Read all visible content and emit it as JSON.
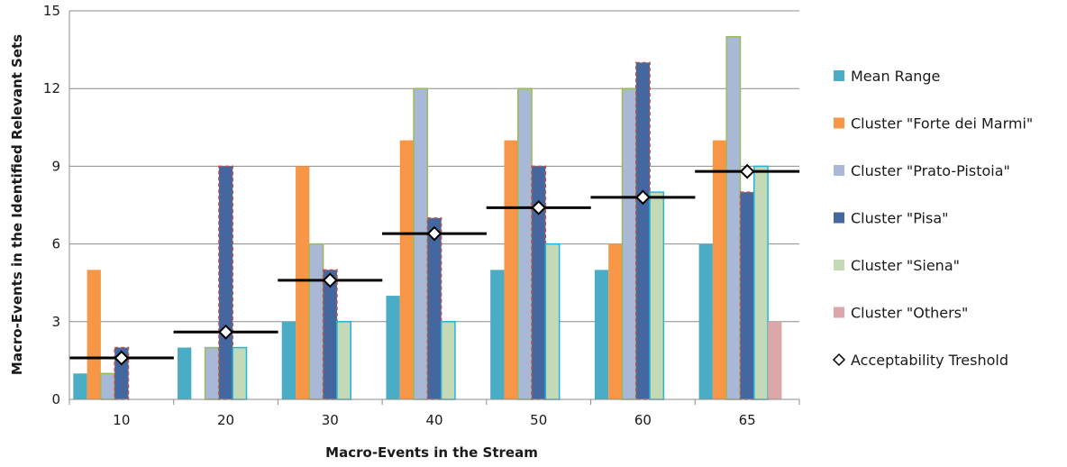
{
  "chart_data": {
    "type": "bar",
    "xlabel": "Macro-Events in the Stream",
    "ylabel": "Macro-Events in the Identified Relevant Sets",
    "ylim": [
      0,
      15
    ],
    "yticks": [
      0,
      3,
      6,
      9,
      12,
      15
    ],
    "grid": true,
    "legend_position": "right",
    "categories": [
      "10",
      "20",
      "30",
      "40",
      "50",
      "60",
      "65"
    ],
    "series": [
      {
        "name": "Mean Range",
        "values": [
          1,
          2,
          3,
          4,
          5,
          5,
          6
        ],
        "color": "#4bacc6"
      },
      {
        "name": "Cluster \"Forte dei Marmi\"",
        "values": [
          5,
          0,
          9,
          10,
          10,
          6,
          10
        ],
        "color": "#f79646"
      },
      {
        "name": "Cluster \"Prato-Pistoia\"",
        "values": [
          1,
          2,
          6,
          12,
          12,
          12,
          14
        ],
        "color": "#a9b8d6"
      },
      {
        "name": "Cluster \"Pisa\"",
        "values": [
          2,
          9,
          5,
          7,
          9,
          13,
          8
        ],
        "color": "#44679f"
      },
      {
        "name": "Cluster \"Siena\"",
        "values": [
          0,
          2,
          3,
          3,
          6,
          8,
          9
        ],
        "color": "#c4d9b5"
      },
      {
        "name": "Cluster \"Others\"",
        "values": [
          0,
          0,
          0,
          0,
          0,
          0,
          3
        ],
        "color": "#dba7a9"
      }
    ],
    "threshold": {
      "name": "Acceptability Treshold",
      "values": [
        1.6,
        2.6,
        4.6,
        6.4,
        7.4,
        7.8,
        8.8
      ]
    }
  }
}
